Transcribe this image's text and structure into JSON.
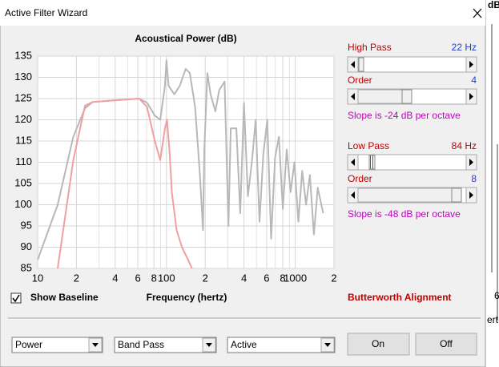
{
  "window": {
    "title": "Active Filter Wizard"
  },
  "chart_data": {
    "type": "line",
    "title": "Acoustical Power (dB)",
    "x_label": "Frequency (hertz)",
    "log_x": true,
    "grid": true,
    "xlim": [
      10,
      2000
    ],
    "ylim": [
      85,
      135
    ],
    "xticks": [
      10,
      {
        "value": 20,
        "label": "2"
      },
      {
        "value": 40,
        "label": "4"
      },
      {
        "value": 60,
        "label": "6"
      },
      {
        "value": 80,
        "label": "8"
      },
      100,
      {
        "value": 200,
        "label": "2"
      },
      {
        "value": 400,
        "label": "4"
      },
      {
        "value": 600,
        "label": "6"
      },
      {
        "value": 800,
        "label": "8"
      },
      1000,
      {
        "value": 2000,
        "label": "2"
      }
    ],
    "xminorticks": [
      30,
      50,
      70,
      90,
      300,
      500,
      700,
      900
    ],
    "yticks": [
      85,
      90,
      95,
      100,
      105,
      110,
      115,
      120,
      125,
      130,
      135
    ],
    "series": [
      {
        "color": "#b8b8b8",
        "x": [
          10,
          14.3,
          18.9,
          23.3,
          26.8,
          61.5,
          70.7,
          81.2,
          89.5,
          97.3,
          100,
          104,
          115,
          127,
          141,
          152,
          167,
          182,
          192,
          197,
          208,
          220,
          240,
          257,
          283,
          303,
          316,
          349,
          374,
          400,
          429,
          460,
          493,
          528,
          566,
          607,
          650,
          697,
          747,
          801,
          859,
          920,
          986,
          1057,
          1133,
          1213,
          1300,
          1396,
          1496,
          1648
        ],
        "values": [
          87,
          100,
          116,
          122.7,
          124.2,
          125,
          124,
          121,
          120,
          128,
          134,
          128,
          126,
          128,
          132,
          131,
          123,
          107,
          94,
          113,
          131,
          126,
          122,
          127,
          129,
          95,
          118,
          118,
          98,
          124,
          102,
          110,
          120,
          96,
          112,
          120,
          92,
          111,
          116,
          99,
          113,
          103,
          110,
          96,
          108,
          100,
          107,
          93,
          104,
          98
        ]
      },
      {
        "color": "#f0a0a0",
        "x": [
          14.3,
          18.9,
          23.3,
          26.8,
          61.5,
          70.7,
          81.2,
          89.5,
          97.3,
          101,
          106,
          110,
          120,
          132,
          145,
          158
        ],
        "values": [
          85,
          110.5,
          123.3,
          124.2,
          125,
          123,
          115,
          110.5,
          118,
          120,
          112,
          103,
          94,
          90,
          87.5,
          85
        ]
      }
    ]
  },
  "filter": {
    "high_pass": {
      "label": "High Pass",
      "value": "22 Hz"
    },
    "high_order": {
      "label": "Order",
      "value": "4"
    },
    "high_slope": "Slope is -24 dB per octave",
    "low_pass": {
      "label": "Low Pass",
      "value": "84 Hz"
    },
    "low_order": {
      "label": "Order",
      "value": "8"
    },
    "low_slope": "Slope is -48 dB per octave",
    "alignment": "Butterworth Alignment"
  },
  "show_baseline": "Show Baseline",
  "dropdowns": [
    "Power",
    "Band Pass",
    "Active"
  ],
  "buttons": [
    "On",
    "Off"
  ],
  "background_text": [
    "dB",
    "6",
    "ert"
  ]
}
